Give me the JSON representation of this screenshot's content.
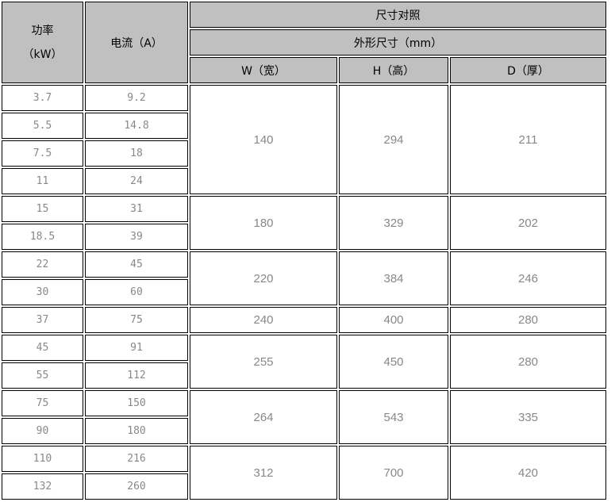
{
  "header": {
    "power_label": "功率",
    "power_unit": "（kW）",
    "current_label": "电流（A）",
    "size_title": "尺寸对照",
    "outer_size": "外形尺寸（mm）",
    "w_label": "W（宽）",
    "h_label": "H（高）",
    "d_label": "D（厚）"
  },
  "rows": [
    {
      "power": "3.7",
      "current": "9.2"
    },
    {
      "power": "5.5",
      "current": "14.8"
    },
    {
      "power": "7.5",
      "current": "18"
    },
    {
      "power": "11",
      "current": "24"
    },
    {
      "power": "15",
      "current": "31"
    },
    {
      "power": "18.5",
      "current": "39"
    },
    {
      "power": "22",
      "current": "45"
    },
    {
      "power": "30",
      "current": "60"
    },
    {
      "power": "37",
      "current": "75"
    },
    {
      "power": "45",
      "current": "91"
    },
    {
      "power": "55",
      "current": "112"
    },
    {
      "power": "75",
      "current": "150"
    },
    {
      "power": "90",
      "current": "180"
    },
    {
      "power": "110",
      "current": "216"
    },
    {
      "power": "132",
      "current": "260"
    }
  ],
  "groups": [
    {
      "w": "140",
      "h": "294",
      "d": "211",
      "span": 4
    },
    {
      "w": "180",
      "h": "329",
      "d": "202",
      "span": 2
    },
    {
      "w": "220",
      "h": "384",
      "d": "246",
      "span": 2
    },
    {
      "w": "240",
      "h": "400",
      "d": "280",
      "span": 1
    },
    {
      "w": "255",
      "h": "450",
      "d": "280",
      "span": 2
    },
    {
      "w": "264",
      "h": "543",
      "d": "335",
      "span": 2
    },
    {
      "w": "312",
      "h": "700",
      "d": "420",
      "span": 2
    }
  ]
}
